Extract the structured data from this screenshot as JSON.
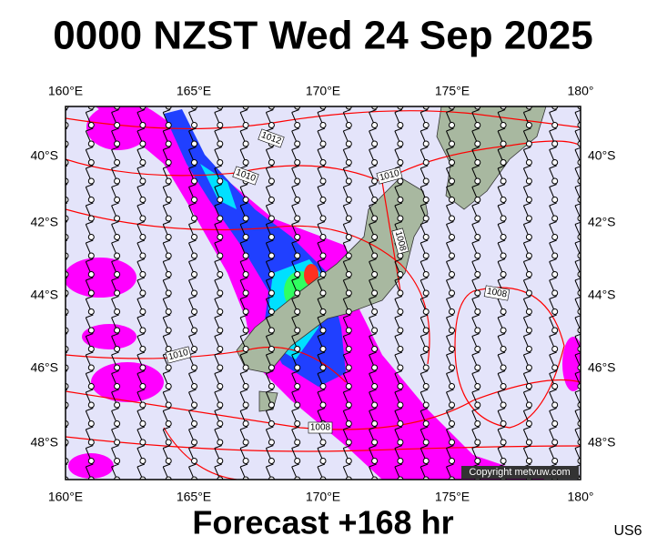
{
  "header": {
    "title": "0000 NZST Wed 24 Sep 2025"
  },
  "axes": {
    "lon": [
      "160°E",
      "165°E",
      "170°E",
      "175°E",
      "180°"
    ],
    "lat": [
      "40°S",
      "42°S",
      "44°S",
      "46°S",
      "48°S"
    ]
  },
  "contour_labels": [
    "1012",
    "1010",
    "1010",
    "1008",
    "1008",
    "1010",
    "1008"
  ],
  "copyright": "Copyright metvuw.com",
  "footer": {
    "forecast": "Forecast +168 hr",
    "code": "US6"
  }
}
